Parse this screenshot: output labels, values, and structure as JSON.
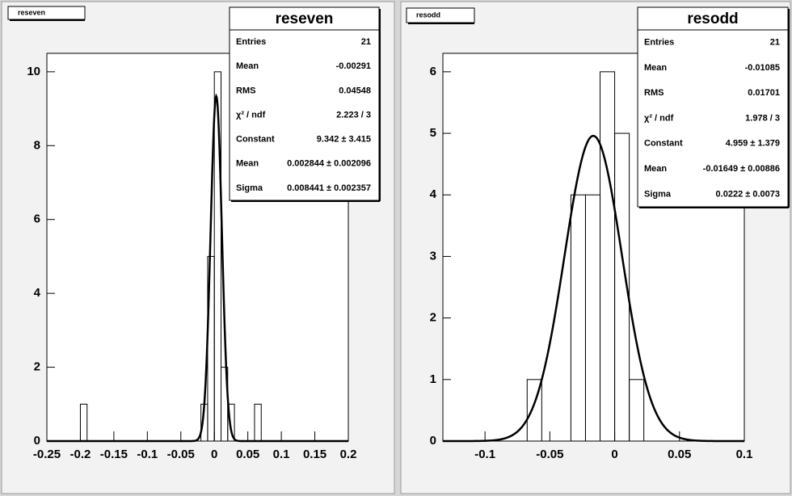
{
  "chart_data": [
    {
      "type": "histogram",
      "title": "reseven",
      "bins": [
        -0.2,
        -0.19,
        -0.18,
        -0.17,
        -0.16,
        -0.15,
        -0.14,
        -0.13,
        -0.12,
        -0.11,
        -0.1,
        -0.09,
        -0.08,
        -0.07,
        -0.06,
        -0.05,
        -0.04,
        -0.03,
        -0.02,
        -0.01,
        0,
        0.01,
        0.02,
        0.03,
        0.04,
        0.05,
        0.06,
        0.07
      ],
      "counts": [
        1,
        0,
        0,
        0,
        0,
        0,
        0,
        0,
        0,
        0,
        0,
        0,
        0,
        0,
        0,
        0,
        0,
        0,
        1,
        5,
        10,
        2,
        1,
        0,
        0,
        0,
        1
      ],
      "xlim": [
        -0.25,
        0.2
      ],
      "ylim": [
        0,
        10.5
      ],
      "xticks": [
        -0.25,
        -0.2,
        -0.15,
        -0.1,
        -0.05,
        0,
        0.05,
        0.1,
        0.15,
        0.2
      ],
      "yticks": [
        0,
        2,
        4,
        6,
        8,
        10
      ],
      "color": "#000000",
      "statistics": [
        {
          "label": "Entries",
          "value": 21
        },
        {
          "label": "Mean",
          "value": -0.00291
        },
        {
          "label": "RMS",
          "value": 0.04548
        },
        {
          "label": "χ² / ndf",
          "value": "2.223 / 3"
        }
      ],
      "fit_parameters": [
        {
          "label": "Constant",
          "value": 9.342,
          "value_label": "9.342 ± 3.415"
        },
        {
          "label": "Mean",
          "value": 0.002844,
          "value_label": "0.002844 ± 0.002096"
        },
        {
          "label": "Sigma",
          "value": 0.008441,
          "value_label": "0.008441 ± 0.002357"
        }
      ]
    },
    {
      "type": "histogram",
      "title": "resodd",
      "bins": [
        -0.0675,
        -0.05625,
        -0.045,
        -0.03375,
        -0.0225,
        -0.01125,
        0,
        0.01125,
        0.0225
      ],
      "counts": [
        1,
        0,
        0,
        4,
        4,
        6,
        5,
        1
      ],
      "xlim": [
        -0.1325,
        0.1
      ],
      "ylim": [
        0,
        6.3
      ],
      "xticks": [
        -0.1,
        -0.05,
        0,
        0.05,
        0.1
      ],
      "yticks": [
        0,
        1,
        2,
        3,
        4,
        5,
        6
      ],
      "color": "#000000",
      "statistics": [
        {
          "label": "Entries",
          "value": 21
        },
        {
          "label": "Mean",
          "value": -0.01085
        },
        {
          "label": "RMS",
          "value": 0.01701
        },
        {
          "label": "χ² / ndf",
          "value": "1.978 / 3"
        }
      ],
      "fit_parameters": [
        {
          "label": "Constant",
          "value": 4.959,
          "value_label": "4.959 ± 1.379"
        },
        {
          "label": "Mean",
          "value": -0.01649,
          "value_label": "-0.01649 ± 0.00886"
        },
        {
          "label": "Sigma",
          "value": 0.0222,
          "value_label": "0.0222 ± 0.0073"
        }
      ]
    }
  ]
}
